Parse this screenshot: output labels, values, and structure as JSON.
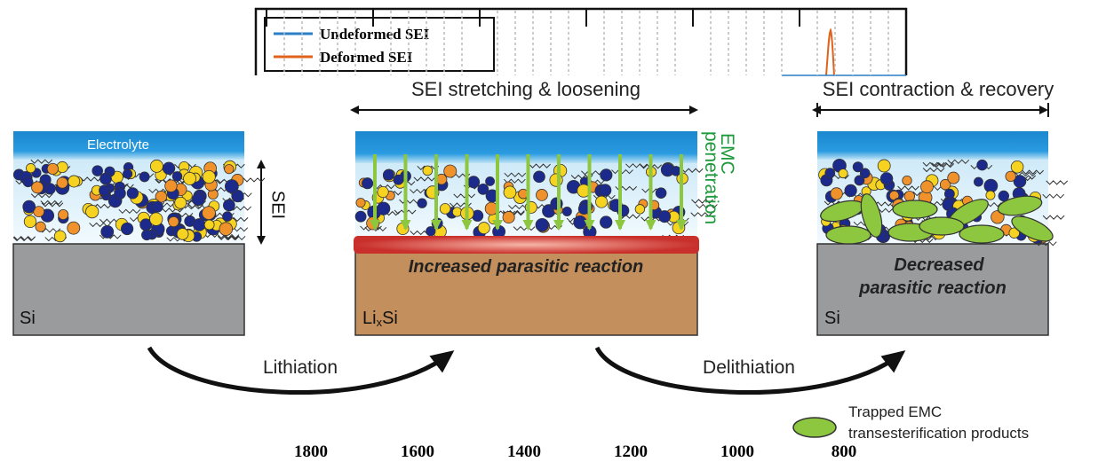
{
  "spectrum_legend": {
    "items": [
      "Undeformed SEI",
      "Deformed SEI"
    ]
  },
  "axis_numbers": [
    "1800",
    "1600",
    "1400",
    "1200",
    "1000",
    "800"
  ],
  "panels": [
    {
      "top_label": "Electrolyte",
      "side_label": "SEI",
      "substrate": "Si"
    },
    {
      "header": "SEI stretching & loosening",
      "side_label": [
        "EMC",
        "penetration"
      ],
      "reaction": "Increased parasitic reaction",
      "substrate": {
        "main": "Li",
        "sub": "x",
        "rest": "Si"
      }
    },
    {
      "header": "SEI contraction & recovery",
      "reaction": [
        "Decreased",
        "parasitic reaction"
      ],
      "substrate": "Si"
    }
  ],
  "transitions": [
    "Lithiation",
    "Delithiation"
  ],
  "legend": {
    "label": [
      "Trapped EMC",
      "transesterification products"
    ]
  }
}
